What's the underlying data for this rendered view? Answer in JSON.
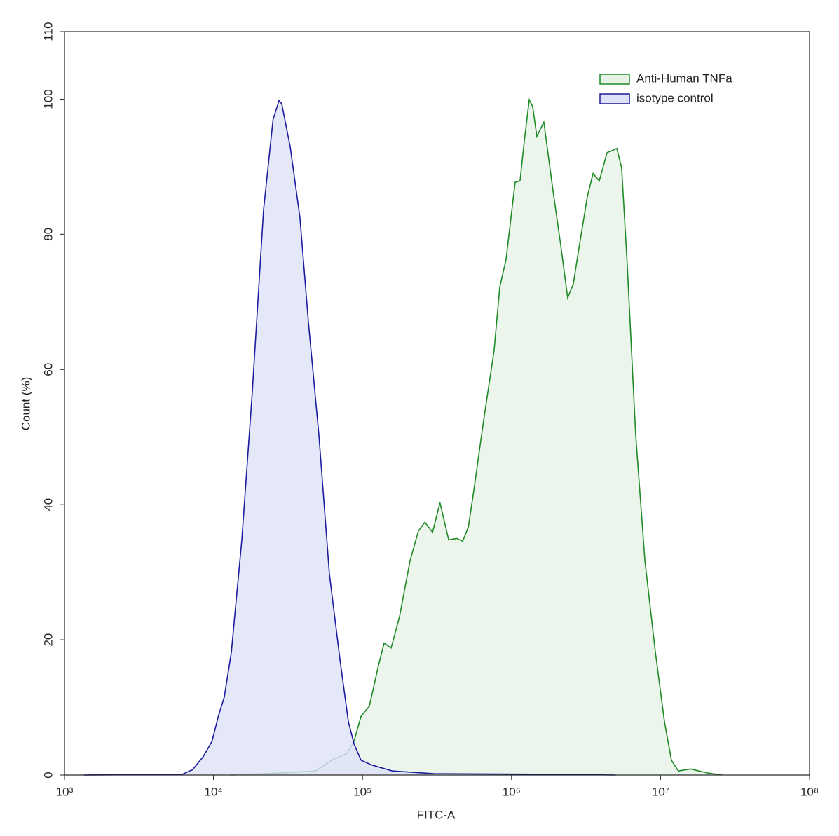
{
  "chart_data": {
    "type": "area",
    "x_label": "FITC-A",
    "y_label": "Count (%)",
    "x_log": true,
    "xlim": [
      1000,
      100000000
    ],
    "xticks": [
      {
        "value": 1000,
        "label": "10³"
      },
      {
        "value": 10000,
        "label": "10⁴"
      },
      {
        "value": 100000,
        "label": "10⁵"
      },
      {
        "value": 1000000,
        "label": "10⁶"
      },
      {
        "value": 10000000,
        "label": "10⁷"
      },
      {
        "value": 100000000,
        "label": "10⁸"
      }
    ],
    "ylim": [
      0,
      110
    ],
    "yticks": [
      0,
      20,
      40,
      60,
      80,
      100,
      110
    ],
    "legend": "upper right",
    "series": [
      {
        "name": "Anti-Human TNFa",
        "color": "#1f8a26",
        "fill": "#e6f3e6",
        "x": [
          13180,
          28180,
          48310,
          63100,
          78700,
          87700,
          97720,
          111200,
          127900,
          139600,
          155600,
          177000,
          208400,
          237100,
          261800,
          295100,
          331100,
          378400,
          430500,
          469900,
          512900,
          558500,
          650100,
          763800,
          833700,
          918800,
          1057000,
          1140000,
          1219000,
          1315000,
          1387000,
          1479000,
          1648000,
          1879000,
          2138000,
          2382000,
          2600000,
          2831000,
          3228000,
          3524000,
          3881000,
          4375000,
          5093000,
          5483000,
          5984000,
          6808000,
          7852000,
          9226000,
          10620000,
          11830000,
          13180000,
          15850000,
          20800000,
          25700000
        ],
        "values": [
          0,
          0.3,
          0.6,
          2.3,
          3.2,
          5,
          8.7,
          10.2,
          16.2,
          19.5,
          18.8,
          23.4,
          31.7,
          36.1,
          37.4,
          35.9,
          40.3,
          34.8,
          35,
          34.6,
          36.7,
          42.1,
          52.5,
          62.8,
          72.2,
          76.3,
          87.7,
          87.9,
          93.9,
          99.9,
          98.9,
          94.5,
          96.6,
          87.2,
          78.4,
          70.6,
          72.7,
          77.9,
          85.6,
          89,
          87.9,
          92.1,
          92.7,
          89.8,
          75.3,
          50.4,
          31.7,
          18.2,
          7.9,
          2.2,
          0.6,
          0.9,
          0.3,
          0
        ]
      },
      {
        "name": "isotype control",
        "color": "#1c1c9e",
        "fill": "#dfe2f7",
        "x": [
          1349,
          6166,
          7244,
          8511,
          9772,
          10840,
          11800,
          13180,
          15490,
          18200,
          21670,
          25120,
          27540,
          28710,
          32730,
          38020,
          43350,
          50930,
          59980,
          70470,
          80350,
          87700,
          97720,
          114800,
          158500,
          302000,
          2138000,
          5000000
        ],
        "values": [
          0,
          0.1,
          0.8,
          2.7,
          5,
          8.9,
          11.5,
          18.2,
          34.8,
          56.6,
          83.6,
          97,
          99.8,
          99.3,
          92.9,
          82.5,
          67,
          50.4,
          29.7,
          17.2,
          7.9,
          4.6,
          2.2,
          1.5,
          0.6,
          0.2,
          0.1,
          0
        ]
      }
    ]
  }
}
